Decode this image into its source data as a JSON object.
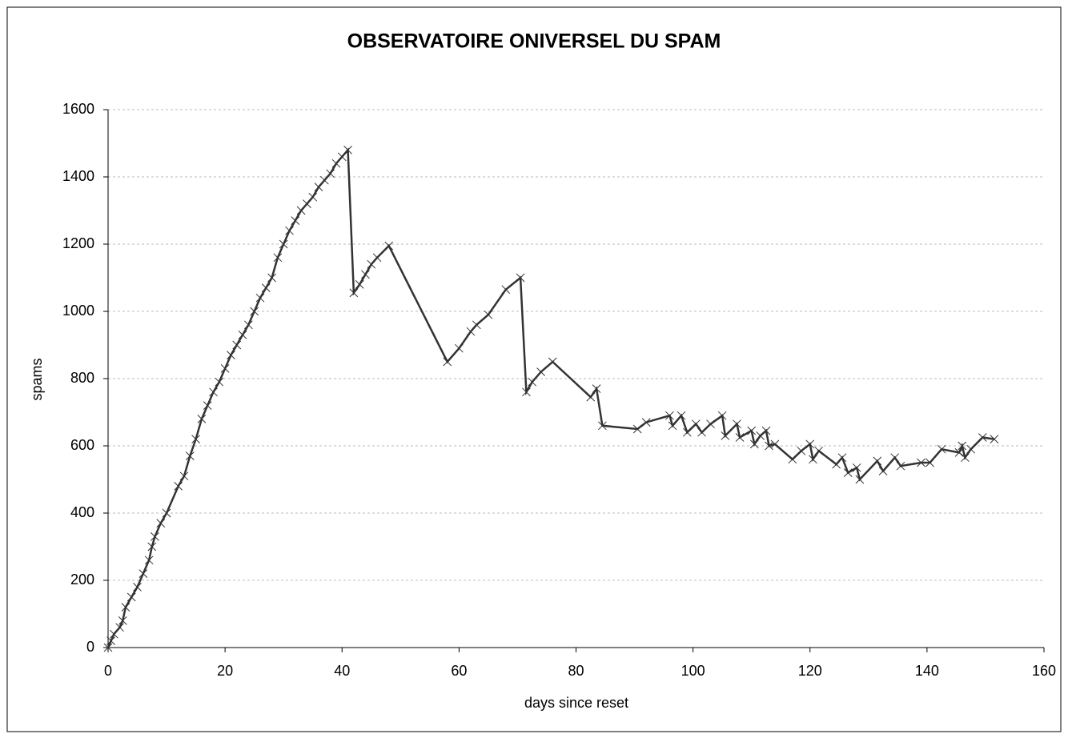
{
  "chart_data": {
    "type": "line",
    "title": "OBSERVATOIRE ONIVERSEL DU SPAM",
    "x_label": "days since reset",
    "y_label": "spams",
    "color": "#333333",
    "grid": true,
    "marker": "x",
    "x": [
      0,
      0.5,
      1,
      2,
      2.5,
      3,
      4,
      5,
      6,
      7,
      7.5,
      8,
      9,
      10,
      12,
      13,
      14,
      15,
      16,
      17,
      18,
      19,
      20,
      21,
      22,
      23,
      24,
      25,
      26,
      27,
      28,
      29,
      30,
      31,
      32,
      33,
      34,
      35,
      36,
      37,
      38,
      39,
      40,
      41,
      42,
      43,
      44,
      45,
      46,
      48,
      58,
      60,
      62,
      63,
      65,
      68,
      70.5,
      71.5,
      72.5,
      74,
      76,
      82.5,
      83.5,
      84.5,
      90.5,
      92,
      96,
      96.5,
      98,
      99,
      100.5,
      101.5,
      103,
      105,
      105.5,
      107.5,
      108,
      110,
      110.5,
      111.5,
      112.5,
      113,
      114,
      117,
      118.5,
      120,
      120.5,
      121.5,
      124.5,
      125.5,
      126.5,
      128,
      128.5,
      131.5,
      132.5,
      134.5,
      135.5,
      139,
      140.5,
      142.5,
      145.5,
      146,
      146.5,
      147.5,
      149.5,
      151.5
    ],
    "values": [
      0,
      20,
      40,
      60,
      80,
      120,
      150,
      180,
      220,
      260,
      300,
      330,
      370,
      400,
      480,
      510,
      570,
      620,
      680,
      720,
      760,
      790,
      830,
      870,
      900,
      930,
      960,
      1000,
      1040,
      1070,
      1100,
      1160,
      1200,
      1240,
      1270,
      1300,
      1320,
      1340,
      1370,
      1390,
      1410,
      1440,
      1460,
      1480,
      1055,
      1080,
      1110,
      1140,
      1160,
      1195,
      850,
      890,
      940,
      960,
      990,
      1065,
      1100,
      760,
      790,
      820,
      850,
      745,
      770,
      660,
      650,
      670,
      690,
      660,
      690,
      640,
      665,
      640,
      665,
      690,
      630,
      665,
      625,
      645,
      605,
      630,
      645,
      600,
      605,
      560,
      585,
      605,
      560,
      585,
      545,
      565,
      520,
      535,
      500,
      555,
      525,
      565,
      540,
      550,
      550,
      590,
      580,
      600,
      565,
      590,
      625,
      620
    ],
    "xlim": [
      0,
      160
    ],
    "xticks": [
      0,
      20,
      40,
      60,
      80,
      100,
      120,
      140,
      160
    ],
    "ylim": [
      0,
      1600
    ],
    "yticks": [
      0,
      200,
      400,
      600,
      800,
      1000,
      1200,
      1400,
      1600
    ]
  }
}
